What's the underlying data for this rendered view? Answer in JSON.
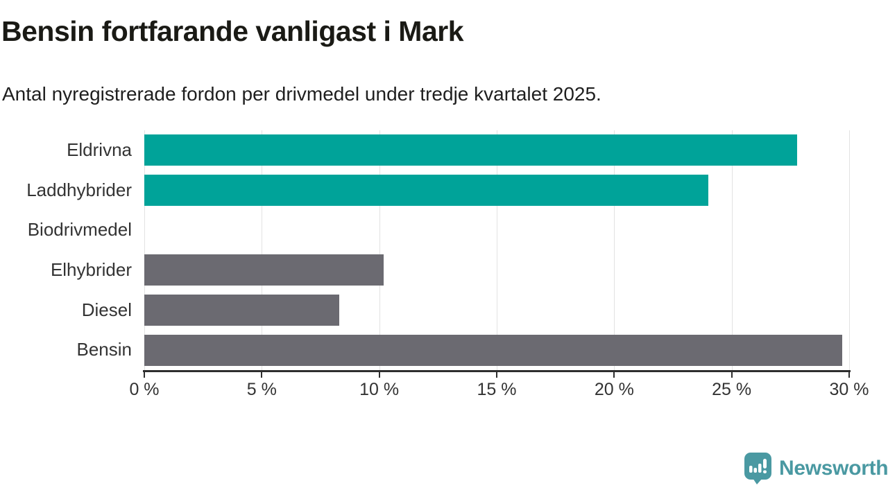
{
  "header": {
    "title": "Bensin fortfarande vanligast i Mark",
    "subtitle": "Antal nyregistrerade fordon per drivmedel under tredje kvartalet 2025."
  },
  "chart_data": {
    "type": "bar",
    "orientation": "horizontal",
    "title": "Bensin fortfarande vanligast i Mark",
    "subtitle": "Antal nyregistrerade fordon per drivmedel under tredje kvartalet 2025.",
    "categories": [
      "Eldrivna",
      "Laddhybrider",
      "Biodrivmedel",
      "Elhybrider",
      "Diesel",
      "Bensin"
    ],
    "values": [
      27.8,
      24.0,
      0,
      10.2,
      8.3,
      29.7
    ],
    "unit": "%",
    "xlim": [
      0,
      30
    ],
    "x_tick_values": [
      0,
      5,
      10,
      15,
      20,
      25,
      30
    ],
    "x_tick_labels": [
      "0 %",
      "5 %",
      "10 %",
      "15 %",
      "20 %",
      "25 %",
      "30 %"
    ],
    "grid": "vertical",
    "legend": "none",
    "bar_colors": [
      "#00a399",
      "#00a399",
      "#6b6a71",
      "#6b6a71",
      "#6b6a71",
      "#6b6a71"
    ],
    "colors": {
      "highlight_teal": "#00a399",
      "neutral_gray": "#6b6a71",
      "gridline": "#e2e2e2",
      "axis": "#2e2e2e",
      "label_text": "#333333"
    }
  },
  "footer": {
    "brand": "Newsworthy",
    "brand_color": "#4a99a2",
    "logo_icon": "speech-bubble-with-bar-chart-and-exclamation"
  }
}
